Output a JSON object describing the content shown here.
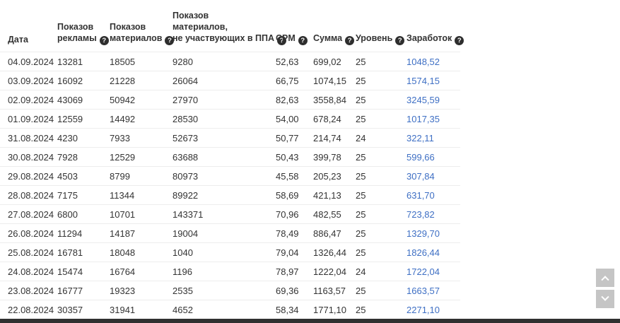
{
  "colors": {
    "text": "#333333",
    "link": "#3e6fc4",
    "separator": "#ededed",
    "help_icon_bg": "#2e2e2e",
    "scroll_button_bg": "#c5c5c5",
    "bottom_bar": "#303030"
  },
  "icons": {
    "help": "?",
    "scroll_up": "chevron-up",
    "scroll_down": "chevron-down"
  },
  "table": {
    "columns": [
      {
        "key": "date",
        "lines": [
          "Дата"
        ],
        "has_help": false
      },
      {
        "key": "ad-impressions",
        "lines": [
          "Показов",
          "рекламы"
        ],
        "has_help": true
      },
      {
        "key": "material-impressions",
        "lines": [
          "Показов",
          "материалов"
        ],
        "has_help": true
      },
      {
        "key": "non-ppa-impressions",
        "lines": [
          "Показов",
          "материалов,",
          "не участвующих в ППА"
        ],
        "has_help": true
      },
      {
        "key": "cpm",
        "lines": [
          "CPM"
        ],
        "has_help": true
      },
      {
        "key": "sum",
        "lines": [
          "Сумма"
        ],
        "has_help": true
      },
      {
        "key": "level",
        "lines": [
          "Уровень"
        ],
        "has_help": true
      },
      {
        "key": "earnings",
        "lines": [
          "Заработок"
        ],
        "has_help": true
      }
    ],
    "rows": [
      [
        "04.09.2024",
        "13281",
        "18505",
        "9280",
        "52,63",
        "699,02",
        "25",
        "1048,52"
      ],
      [
        "03.09.2024",
        "16092",
        "21228",
        "26064",
        "66,75",
        "1074,15",
        "25",
        "1574,15"
      ],
      [
        "02.09.2024",
        "43069",
        "50942",
        "27970",
        "82,63",
        "3558,84",
        "25",
        "3245,59"
      ],
      [
        "01.09.2024",
        "12559",
        "14492",
        "28530",
        "54,00",
        "678,24",
        "25",
        "1017,35"
      ],
      [
        "31.08.2024",
        "4230",
        "7933",
        "52673",
        "50,77",
        "214,74",
        "24",
        "322,11"
      ],
      [
        "30.08.2024",
        "7928",
        "12529",
        "63688",
        "50,43",
        "399,78",
        "25",
        "599,66"
      ],
      [
        "29.08.2024",
        "4503",
        "8799",
        "80973",
        "45,58",
        "205,23",
        "25",
        "307,84"
      ],
      [
        "28.08.2024",
        "7175",
        "11344",
        "89922",
        "58,69",
        "421,13",
        "25",
        "631,70"
      ],
      [
        "27.08.2024",
        "6800",
        "10701",
        "143371",
        "70,96",
        "482,55",
        "25",
        "723,82"
      ],
      [
        "26.08.2024",
        "11294",
        "14187",
        "19004",
        "78,49",
        "886,47",
        "25",
        "1329,70"
      ],
      [
        "25.08.2024",
        "16781",
        "18048",
        "1040",
        "79,04",
        "1326,44",
        "25",
        "1826,44"
      ],
      [
        "24.08.2024",
        "15474",
        "16764",
        "1196",
        "78,97",
        "1222,04",
        "24",
        "1722,04"
      ],
      [
        "23.08.2024",
        "16777",
        "19323",
        "2535",
        "69,36",
        "1163,57",
        "25",
        "1663,57"
      ],
      [
        "22.08.2024",
        "30357",
        "31941",
        "4652",
        "58,34",
        "1771,10",
        "25",
        "2271,10"
      ]
    ]
  }
}
